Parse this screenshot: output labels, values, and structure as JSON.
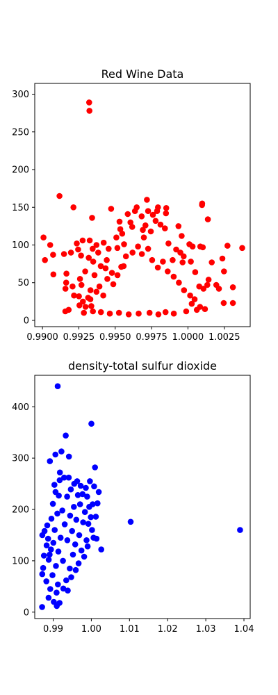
{
  "chart_data": [
    {
      "type": "scatter",
      "title": "Red Wine Data",
      "xlabel": "",
      "ylabel": "",
      "xlim": [
        0.98947,
        1.00428
      ],
      "ylim": [
        -8.3,
        314.3
      ],
      "xticks": [
        0.99,
        0.9925,
        0.995,
        0.9975,
        1.0,
        1.0025
      ],
      "xtick_labels": [
        "0.9900",
        "0.9925",
        "0.9950",
        "0.9975",
        "1.0000",
        "1.0025"
      ],
      "yticks": [
        0,
        50,
        100,
        150,
        200,
        250,
        300
      ],
      "ytick_labels": [
        "0",
        "50",
        "100",
        "150",
        "200",
        "250",
        "300"
      ],
      "grid": false,
      "series": [
        {
          "color": "#ff0000",
          "marker": "circle",
          "points": [
            [
              0.99007,
              110
            ],
            [
              0.99017,
              80
            ],
            [
              0.99053,
              100
            ],
            [
              0.99073,
              87
            ],
            [
              0.99075,
              61
            ],
            [
              0.99117,
              165
            ],
            [
              0.99148,
              88
            ],
            [
              0.99157,
              12
            ],
            [
              0.99158,
              42
            ],
            [
              0.99163,
              50
            ],
            [
              0.99165,
              62
            ],
            [
              0.9918,
              14
            ],
            [
              0.99196,
              90
            ],
            [
              0.99207,
              45
            ],
            [
              0.99213,
              150
            ],
            [
              0.99217,
              33
            ],
            [
              0.99236,
              102
            ],
            [
              0.99245,
              94
            ],
            [
              0.99254,
              20
            ],
            [
              0.99258,
              55
            ],
            [
              0.99265,
              86
            ],
            [
              0.99268,
              47
            ],
            [
              0.99276,
              106
            ],
            [
              0.99285,
              10
            ],
            [
              0.99294,
              65
            ],
            [
              0.99314,
              30
            ],
            [
              0.99318,
              83
            ],
            [
              0.99321,
              289
            ],
            [
              0.99323,
              278
            ],
            [
              0.99325,
              106
            ],
            [
              0.9933,
              40
            ],
            [
              0.99341,
              136
            ],
            [
              0.99345,
              95
            ],
            [
              0.99349,
              78
            ],
            [
              0.99358,
              60
            ],
            [
              0.99371,
              100
            ],
            [
              0.99383,
              90
            ],
            [
              0.99401,
              72
            ],
            [
              0.99421,
              103
            ],
            [
              0.99434,
              69
            ],
            [
              0.99442,
              80
            ],
            [
              0.99455,
              95
            ],
            [
              0.99472,
              148
            ],
            [
              0.99478,
              63
            ],
            [
              0.99508,
              110
            ],
            [
              0.99515,
              96
            ],
            [
              0.9953,
              131
            ],
            [
              0.99535,
              121
            ],
            [
              0.99542,
              71
            ],
            [
              0.99548,
              115
            ],
            [
              0.99561,
              101
            ],
            [
              0.99586,
              141
            ],
            [
              0.99605,
              130
            ],
            [
              0.99617,
              124
            ],
            [
              0.99636,
              145
            ],
            [
              0.99648,
              150
            ],
            [
              0.99682,
              138
            ],
            [
              0.9969,
              120
            ],
            [
              0.99697,
              110
            ],
            [
              0.99708,
              126
            ],
            [
              0.99718,
              160
            ],
            [
              0.99726,
              145
            ],
            [
              0.99745,
              118
            ],
            [
              0.99759,
              140
            ],
            [
              0.99778,
              132
            ],
            [
              0.99788,
              145
            ],
            [
              0.99794,
              150
            ],
            [
              0.99811,
              127
            ],
            [
              0.99842,
              122
            ],
            [
              0.99849,
              142
            ],
            [
              0.99851,
              149
            ],
            [
              0.99866,
              102
            ],
            [
              0.99895,
              80
            ],
            [
              0.99919,
              94
            ],
            [
              0.99935,
              125
            ],
            [
              0.99948,
              90
            ],
            [
              0.99957,
              112
            ],
            [
              0.99963,
              77
            ],
            [
              0.99971,
              85
            ],
            [
              1.0001,
              101
            ],
            [
              1.0002,
              78
            ],
            [
              1.00032,
              98
            ],
            [
              1.0005,
              64
            ],
            [
              1.00078,
              45
            ],
            [
              1.00085,
              98
            ],
            [
              1.00097,
              153
            ],
            [
              1.00098,
              155
            ],
            [
              1.00102,
              97
            ],
            [
              1.00107,
              42
            ],
            [
              1.00133,
              47
            ],
            [
              1.00137,
              134
            ],
            [
              1.00142,
              54
            ],
            [
              1.00164,
              77
            ],
            [
              1.00195,
              47
            ],
            [
              1.00213,
              42
            ],
            [
              1.00237,
              82
            ],
            [
              1.00246,
              23
            ],
            [
              1.00248,
              65
            ],
            [
              1.00272,
              99
            ],
            [
              1.00309,
              44
            ],
            [
              1.00309,
              23
            ],
            [
              1.00373,
              96
            ],
            [
              0.99251,
              32
            ],
            [
              0.99278,
              25
            ],
            [
              0.99296,
              18
            ],
            [
              0.99329,
              28
            ],
            [
              0.99336,
              19
            ],
            [
              0.99371,
              38
            ],
            [
              0.99392,
              45
            ],
            [
              0.99418,
              33
            ],
            [
              0.99446,
              55
            ],
            [
              0.99487,
              48
            ],
            [
              0.99516,
              60
            ],
            [
              0.99558,
              72
            ],
            [
              0.99574,
              85
            ],
            [
              0.99619,
              90
            ],
            [
              0.99657,
              98
            ],
            [
              0.99683,
              88
            ],
            [
              0.99726,
              95
            ],
            [
              0.99754,
              80
            ],
            [
              0.99793,
              70
            ],
            [
              0.99828,
              78
            ],
            [
              0.99861,
              65
            ],
            [
              0.99902,
              58
            ],
            [
              0.99938,
              50
            ],
            [
              0.99973,
              40
            ],
            [
              1.00015,
              33
            ],
            [
              1.00046,
              28
            ],
            [
              1.00083,
              18
            ],
            [
              1.00117,
              15
            ],
            [
              1.00061,
              14
            ],
            [
              1.00026,
              22
            ],
            [
              0.99988,
              12
            ],
            [
              0.99903,
              9
            ],
            [
              0.99846,
              11
            ],
            [
              0.99797,
              8
            ],
            [
              0.99736,
              10
            ],
            [
              0.99661,
              9
            ],
            [
              0.99593,
              8
            ],
            [
              0.99526,
              10
            ],
            [
              0.99463,
              9
            ],
            [
              0.99402,
              11
            ],
            [
              0.99347,
              12
            ]
          ]
        }
      ]
    },
    {
      "type": "scatter",
      "title": "density-total sulfur dioxide",
      "xlabel": "",
      "ylabel": "",
      "xlim": [
        0.98517,
        1.04164
      ],
      "ylim": [
        -12.5,
        461.3
      ],
      "xticks": [
        0.99,
        1.0,
        1.01,
        1.02,
        1.03,
        1.04
      ],
      "xtick_labels": [
        "0.99",
        "1.00",
        "1.01",
        "1.02",
        "1.03",
        "1.04"
      ],
      "yticks": [
        0,
        100,
        200,
        300,
        400
      ],
      "ytick_labels": [
        "0",
        "100",
        "200",
        "300",
        "400"
      ],
      "grid": false,
      "series": [
        {
          "color": "#0000ff",
          "marker": "circle",
          "points": [
            [
              0.98711,
              10
            ],
            [
              0.98714,
              74
            ],
            [
              0.98716,
              150
            ],
            [
              0.98738,
              86
            ],
            [
              0.98757,
              110
            ],
            [
              0.98773,
              158
            ],
            [
              0.98821,
              60
            ],
            [
              0.98829,
              130
            ],
            [
              0.98845,
              169
            ],
            [
              0.98867,
              143
            ],
            [
              0.98879,
              28
            ],
            [
              0.98883,
              102
            ],
            [
              0.98906,
              112
            ],
            [
              0.98915,
              294
            ],
            [
              0.98924,
              45
            ],
            [
              0.98942,
              122
            ],
            [
              0.98955,
              182
            ],
            [
              0.98981,
              72
            ],
            [
              0.98993,
              211
            ],
            [
              0.99005,
              135
            ],
            [
              0.99016,
              20
            ],
            [
              0.99032,
              248
            ],
            [
              0.99039,
              160
            ],
            [
              0.99058,
              307
            ],
            [
              0.99061,
              234
            ],
            [
              0.99072,
              90
            ],
            [
              0.99089,
              38
            ],
            [
              0.99094,
              12
            ],
            [
              0.99109,
              192
            ],
            [
              0.99119,
              440
            ],
            [
              0.99123,
              54
            ],
            [
              0.99136,
              118
            ],
            [
              0.99148,
              227
            ],
            [
              0.99168,
              18
            ],
            [
              0.99171,
              257
            ],
            [
              0.99176,
              272
            ],
            [
              0.99194,
              145
            ],
            [
              0.99217,
              313
            ],
            [
              0.99241,
              198
            ],
            [
              0.99256,
              100
            ],
            [
              0.99265,
              46
            ],
            [
              0.99287,
              262
            ],
            [
              0.99303,
              171
            ],
            [
              0.99329,
              344
            ],
            [
              0.99342,
              62
            ],
            [
              0.99366,
              225
            ],
            [
              0.99371,
              140
            ],
            [
              0.99383,
              42
            ],
            [
              0.99408,
              262
            ],
            [
              0.99413,
              303
            ],
            [
              0.99436,
              85
            ],
            [
              0.99445,
              188
            ],
            [
              0.99463,
              239
            ],
            [
              0.99474,
              68
            ],
            [
              0.99495,
              158
            ],
            [
              0.99519,
              112
            ],
            [
              0.99542,
              205
            ],
            [
              0.99551,
              250
            ],
            [
              0.99578,
              132
            ],
            [
              0.99592,
              82
            ],
            [
              0.99607,
              180
            ],
            [
              0.99628,
              255
            ],
            [
              0.99649,
              228
            ],
            [
              0.99666,
              95
            ],
            [
              0.99683,
              150
            ],
            [
              0.99705,
              210
            ],
            [
              0.99721,
              246
            ],
            [
              0.99742,
              120
            ],
            [
              0.99771,
              230
            ],
            [
              0.99785,
              175
            ],
            [
              0.99812,
              108
            ],
            [
              0.99833,
              195
            ],
            [
              0.99856,
              242
            ],
            [
              0.99874,
              140
            ],
            [
              0.99891,
              225
            ],
            [
              0.99903,
              128
            ],
            [
              0.99922,
              172
            ],
            [
              0.99946,
              205
            ],
            [
              0.99963,
              255
            ],
            [
              0.99987,
              185
            ],
            [
              1.00002,
              367
            ],
            [
              1.00018,
              160
            ],
            [
              1.00035,
              210
            ],
            [
              1.00058,
              145
            ],
            [
              1.00073,
              245
            ],
            [
              1.00097,
              282
            ],
            [
              1.00118,
              186
            ],
            [
              1.00137,
              143
            ],
            [
              1.00162,
              212
            ],
            [
              1.00195,
              234
            ],
            [
              1.00261,
              122
            ],
            [
              1.01031,
              176
            ],
            [
              1.03898,
              160
            ]
          ]
        }
      ]
    }
  ]
}
